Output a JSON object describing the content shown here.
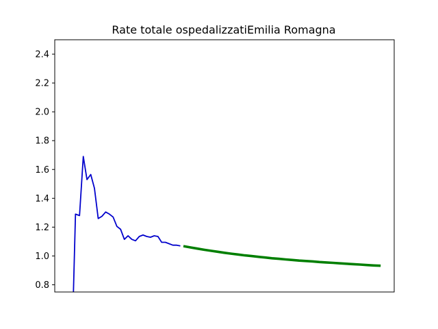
{
  "chart_data": {
    "type": "line",
    "title": "Rate totale ospedalizzatiEmilia Romagna",
    "xlabel": "",
    "ylabel": "",
    "ylim": [
      0.75,
      2.5
    ],
    "xlim": [
      0,
      100
    ],
    "yticks": [
      "0.8",
      "1.0",
      "1.2",
      "1.4",
      "1.6",
      "1.8",
      "2.0",
      "2.2",
      "2.4"
    ],
    "xticks_visible": false,
    "grid": false,
    "legend": "none",
    "series": [
      {
        "color": "#0000cc",
        "line_width": "thin",
        "x": [
          5.5,
          6.1,
          7.3,
          8.4,
          9.5,
          10.6,
          11.7,
          12.8,
          13.9,
          15.0,
          16.1,
          17.2,
          18.3,
          19.4,
          20.5,
          21.6,
          22.7,
          23.8,
          24.9,
          26.0,
          27.1,
          28.2,
          29.3,
          30.4,
          31.5,
          32.6,
          33.7,
          34.8,
          35.9,
          37.0
        ],
        "y": [
          0.75,
          1.29,
          1.28,
          1.69,
          1.53,
          1.565,
          1.47,
          1.26,
          1.275,
          1.305,
          1.29,
          1.27,
          1.205,
          1.185,
          1.115,
          1.14,
          1.115,
          1.105,
          1.135,
          1.145,
          1.135,
          1.13,
          1.14,
          1.135,
          1.095,
          1.095,
          1.085,
          1.075,
          1.075,
          1.07
        ]
      },
      {
        "color": "#007f00",
        "line_width": "thick",
        "x": [
          37.9,
          40,
          42,
          44,
          46,
          48,
          50,
          52,
          54,
          56,
          58,
          60,
          62,
          64,
          66,
          68,
          70,
          72,
          74,
          76,
          78,
          80,
          82,
          84,
          86,
          88,
          90,
          92,
          94,
          96
        ],
        "y": [
          1.068,
          1.059,
          1.051,
          1.043,
          1.036,
          1.029,
          1.022,
          1.016,
          1.01,
          1.004,
          0.999,
          0.994,
          0.989,
          0.984,
          0.98,
          0.976,
          0.972,
          0.968,
          0.965,
          0.962,
          0.958,
          0.955,
          0.952,
          0.949,
          0.946,
          0.943,
          0.94,
          0.937,
          0.934,
          0.932
        ]
      }
    ]
  }
}
